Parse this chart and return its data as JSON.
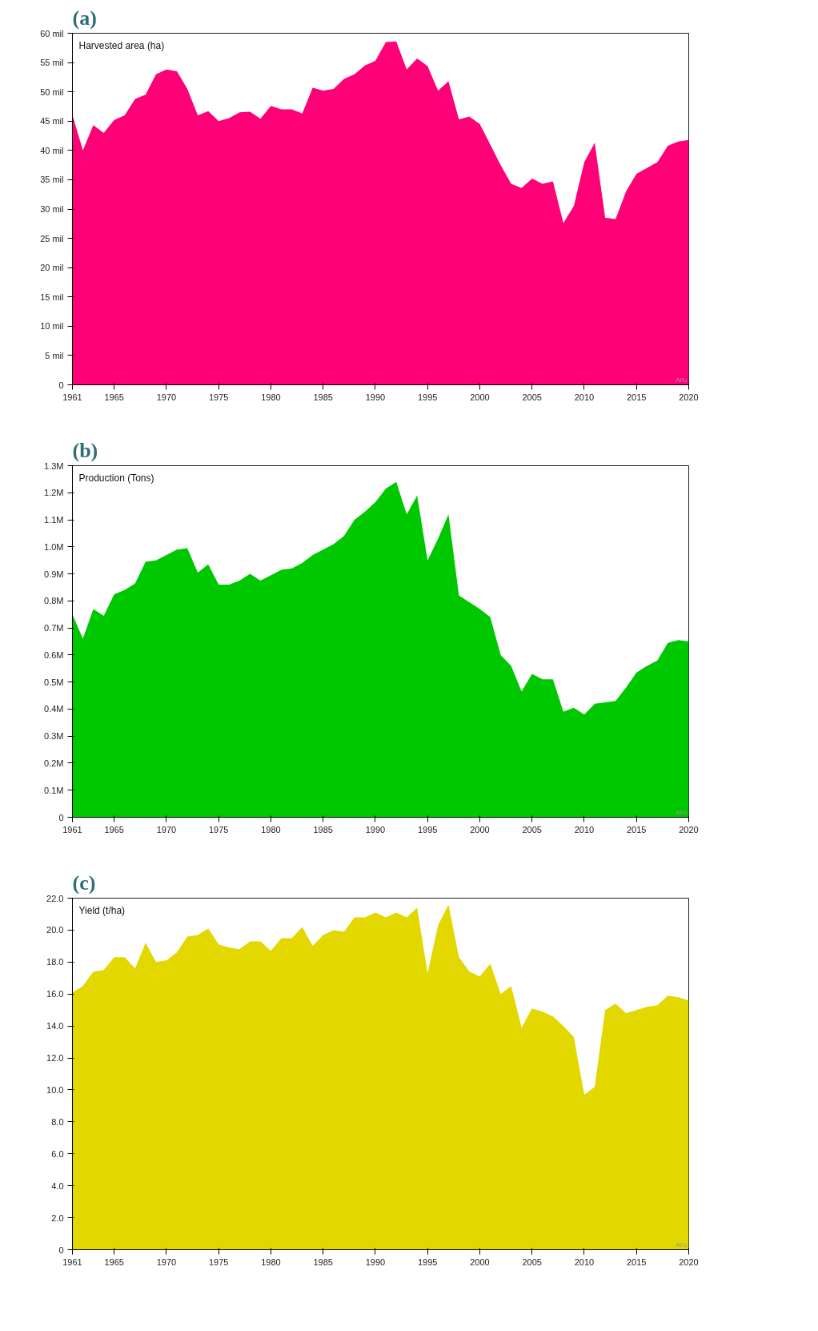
{
  "chart_data": [
    {
      "type": "area",
      "title": "(a)",
      "ylabel": "Harvested area (ha)",
      "xlabel": "Año",
      "x": [
        1961,
        1962,
        1963,
        1964,
        1965,
        1966,
        1967,
        1968,
        1969,
        1970,
        1971,
        1972,
        1973,
        1974,
        1975,
        1976,
        1977,
        1978,
        1979,
        1980,
        1981,
        1982,
        1983,
        1984,
        1985,
        1986,
        1987,
        1988,
        1989,
        1990,
        1991,
        1992,
        1993,
        1994,
        1995,
        1996,
        1997,
        1998,
        1999,
        2000,
        2001,
        2002,
        2003,
        2004,
        2005,
        2006,
        2007,
        2008,
        2009,
        2010,
        2011,
        2012,
        2013,
        2014,
        2015,
        2016,
        2017,
        2018,
        2019,
        2020
      ],
      "series": [
        {
          "color": "#ff0077",
          "values": [
            46,
            40,
            44.3,
            43,
            45.2,
            46,
            48.8,
            49.5,
            53,
            53.8,
            53.5,
            50.5,
            46,
            46.7,
            45,
            45.5,
            46.5,
            46.6,
            45.4,
            47.6,
            47,
            47,
            46.3,
            50.7,
            50.2,
            50.5,
            52.2,
            53,
            54.5,
            55.3,
            58.5,
            58.6,
            53.8,
            55.7,
            54.4,
            50.2,
            51.8,
            45.3,
            45.8,
            44.5,
            41,
            37.5,
            34.3,
            33.6,
            35.2,
            34.3,
            34.7,
            27.6,
            30.5,
            38,
            41.3,
            28.5,
            28.3,
            33,
            36,
            37,
            38,
            40.8,
            41.5,
            41.8
          ]
        }
      ],
      "xlim": [
        1961,
        2020
      ],
      "xticks": [
        1961,
        1965,
        1970,
        1975,
        1980,
        1985,
        1990,
        1995,
        2000,
        2005,
        2010,
        2015,
        2020
      ],
      "ylim": [
        0,
        60
      ],
      "yticks": [
        {
          "value": 0,
          "label": "0"
        },
        {
          "value": 5,
          "label": "5 mil"
        },
        {
          "value": 10,
          "label": "10 mil"
        },
        {
          "value": 15,
          "label": "15 mil"
        },
        {
          "value": 20,
          "label": "20 mil"
        },
        {
          "value": 25,
          "label": "25 mil"
        },
        {
          "value": 30,
          "label": "30 mil"
        },
        {
          "value": 35,
          "label": "35 mil"
        },
        {
          "value": 40,
          "label": "40 mil"
        },
        {
          "value": 45,
          "label": "45 mil"
        },
        {
          "value": 50,
          "label": "50 mil"
        },
        {
          "value": 55,
          "label": "55 mil"
        },
        {
          "value": 60,
          "label": "60 mil"
        }
      ],
      "grid": false
    },
    {
      "type": "area",
      "title": "(b)",
      "ylabel": "Production (Tons)",
      "xlabel": "Año",
      "x": [
        1961,
        1962,
        1963,
        1964,
        1965,
        1966,
        1967,
        1968,
        1969,
        1970,
        1971,
        1972,
        1973,
        1974,
        1975,
        1976,
        1977,
        1978,
        1979,
        1980,
        1981,
        1982,
        1983,
        1984,
        1985,
        1986,
        1987,
        1988,
        1989,
        1990,
        1991,
        1992,
        1993,
        1994,
        1995,
        1996,
        1997,
        1998,
        1999,
        2000,
        2001,
        2002,
        2003,
        2004,
        2005,
        2006,
        2007,
        2008,
        2009,
        2010,
        2011,
        2012,
        2013,
        2014,
        2015,
        2016,
        2017,
        2018,
        2019,
        2020
      ],
      "series": [
        {
          "color": "#00c800",
          "values": [
            0.75,
            0.66,
            0.77,
            0.745,
            0.825,
            0.84,
            0.865,
            0.945,
            0.95,
            0.97,
            0.99,
            0.995,
            0.905,
            0.935,
            0.86,
            0.86,
            0.875,
            0.9,
            0.875,
            0.895,
            0.915,
            0.92,
            0.94,
            0.97,
            0.99,
            1.01,
            1.04,
            1.1,
            1.13,
            1.165,
            1.215,
            1.24,
            1.12,
            1.19,
            0.95,
            1.03,
            1.12,
            0.82,
            0.795,
            0.77,
            0.74,
            0.6,
            0.56,
            0.465,
            0.53,
            0.51,
            0.51,
            0.39,
            0.405,
            0.38,
            0.42,
            0.425,
            0.43,
            0.48,
            0.535,
            0.56,
            0.58,
            0.645,
            0.655,
            0.65
          ]
        }
      ],
      "xlim": [
        1961,
        2020
      ],
      "xticks": [
        1961,
        1965,
        1970,
        1975,
        1980,
        1985,
        1990,
        1995,
        2000,
        2005,
        2010,
        2015,
        2020
      ],
      "ylim": [
        0,
        1.3
      ],
      "yticks": [
        {
          "value": 0,
          "label": "0"
        },
        {
          "value": 0.1,
          "label": "0.1M"
        },
        {
          "value": 0.2,
          "label": "0.2M"
        },
        {
          "value": 0.3,
          "label": "0.3M"
        },
        {
          "value": 0.4,
          "label": "0.4M"
        },
        {
          "value": 0.5,
          "label": "0.5M"
        },
        {
          "value": 0.6,
          "label": "0.6M"
        },
        {
          "value": 0.7,
          "label": "0.7M"
        },
        {
          "value": 0.8,
          "label": "0.8M"
        },
        {
          "value": 0.9,
          "label": "0.9M"
        },
        {
          "value": 1.0,
          "label": "1.0M"
        },
        {
          "value": 1.1,
          "label": "1.1M"
        },
        {
          "value": 1.2,
          "label": "1.2M"
        },
        {
          "value": 1.3,
          "label": "1.3M"
        }
      ],
      "grid": false
    },
    {
      "type": "area",
      "title": "(c)",
      "ylabel": "Yield (t/ha)",
      "xlabel": "Año",
      "x": [
        1961,
        1962,
        1963,
        1964,
        1965,
        1966,
        1967,
        1968,
        1969,
        1970,
        1971,
        1972,
        1973,
        1974,
        1975,
        1976,
        1977,
        1978,
        1979,
        1980,
        1981,
        1982,
        1983,
        1984,
        1985,
        1986,
        1987,
        1988,
        1989,
        1990,
        1991,
        1992,
        1993,
        1994,
        1995,
        1996,
        1997,
        1998,
        1999,
        2000,
        2001,
        2002,
        2003,
        2004,
        2005,
        2006,
        2007,
        2008,
        2009,
        2010,
        2011,
        2012,
        2013,
        2014,
        2015,
        2016,
        2017,
        2018,
        2019,
        2020
      ],
      "series": [
        {
          "color": "#e2d800",
          "values": [
            16.1,
            16.5,
            17.4,
            17.5,
            18.3,
            18.3,
            17.6,
            19.2,
            18.0,
            18.1,
            18.6,
            19.6,
            19.7,
            20.1,
            19.1,
            18.9,
            18.8,
            19.3,
            19.3,
            18.7,
            19.5,
            19.5,
            20.2,
            19.0,
            19.7,
            20.0,
            19.9,
            20.8,
            20.8,
            21.1,
            20.8,
            21.1,
            20.8,
            21.4,
            17.3,
            20.3,
            21.6,
            18.3,
            17.4,
            17.1,
            17.9,
            16.0,
            16.5,
            13.9,
            15.1,
            14.9,
            14.6,
            14.0,
            13.3,
            9.7,
            10.2,
            15.0,
            15.4,
            14.8,
            15.0,
            15.2,
            15.3,
            15.9,
            15.8,
            15.6
          ]
        }
      ],
      "xlim": [
        1961,
        2020
      ],
      "xticks": [
        1961,
        1965,
        1970,
        1975,
        1980,
        1985,
        1990,
        1995,
        2000,
        2005,
        2010,
        2015,
        2020
      ],
      "ylim": [
        0,
        22
      ],
      "yticks": [
        {
          "value": 0,
          "label": "0"
        },
        {
          "value": 2,
          "label": "2.0"
        },
        {
          "value": 4,
          "label": "4.0"
        },
        {
          "value": 6,
          "label": "6.0"
        },
        {
          "value": 8,
          "label": "8.0"
        },
        {
          "value": 10,
          "label": "10.0"
        },
        {
          "value": 12,
          "label": "12.0"
        },
        {
          "value": 14,
          "label": "14.0"
        },
        {
          "value": 16,
          "label": "16.0"
        },
        {
          "value": 18,
          "label": "18.0"
        },
        {
          "value": 20,
          "label": "20.0"
        },
        {
          "value": 22,
          "label": "22.0"
        }
      ],
      "grid": false
    }
  ]
}
